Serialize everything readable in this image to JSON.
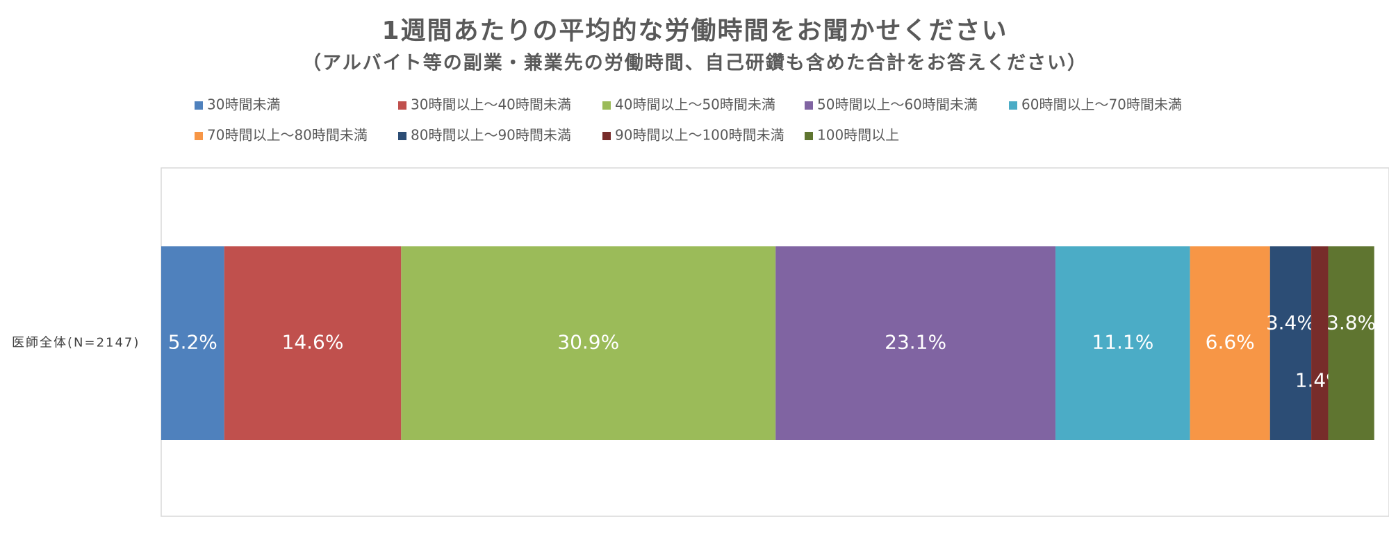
{
  "chart_data": {
    "type": "bar",
    "orientation": "horizontal",
    "stacked": true,
    "title": "1週間あたりの平均的な労働時間をお聞かせください",
    "subtitle": "（アルバイト等の副業・兼業先の労働時間、自己研鑽も含めた合計をお答えください）",
    "categories": [
      "医師全体(N=2147)"
    ],
    "xlim": [
      0,
      100
    ],
    "legend": "top",
    "series": [
      {
        "name": "30時間未満",
        "color": "#4f81bd",
        "values": [
          5.2
        ],
        "value_labels": [
          "5.2%"
        ]
      },
      {
        "name": "30時間以上～40時間未満",
        "color": "#c0504d",
        "values": [
          14.6
        ],
        "value_labels": [
          "14.6%"
        ]
      },
      {
        "name": "40時間以上～50時間未満",
        "color": "#9bbb59",
        "values": [
          30.9
        ],
        "value_labels": [
          "30.9%"
        ]
      },
      {
        "name": "50時間以上～60時間未満",
        "color": "#8064a2",
        "values": [
          23.1
        ],
        "value_labels": [
          "23.1%"
        ]
      },
      {
        "name": "60時間以上～70時間未満",
        "color": "#4bacc6",
        "values": [
          11.1
        ],
        "value_labels": [
          "11.1%"
        ]
      },
      {
        "name": "70時間以上～80時間未満",
        "color": "#f79646",
        "values": [
          6.6
        ],
        "value_labels": [
          "6.6%"
        ]
      },
      {
        "name": "80時間以上～90時間未満",
        "color": "#2c4d75",
        "values": [
          3.4
        ],
        "value_labels": [
          "3.4%"
        ]
      },
      {
        "name": "90時間以上～100時間未満",
        "color": "#772c2a",
        "values": [
          1.4
        ],
        "value_labels": [
          "1.4%"
        ]
      },
      {
        "name": "100時間以上",
        "color": "#5f7530",
        "values": [
          3.8
        ],
        "value_labels": [
          "3.8%"
        ]
      }
    ]
  }
}
